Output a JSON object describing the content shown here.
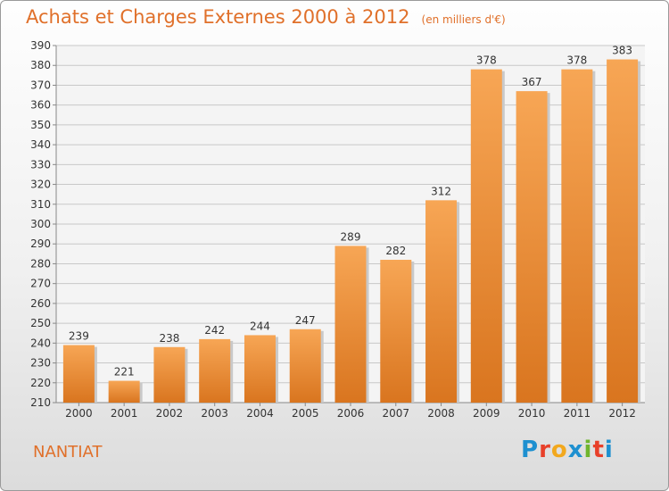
{
  "header": {
    "title": "Achats et Charges Externes 2000 à 2012",
    "subtitle": "(en milliers d'€)"
  },
  "footer": {
    "town": "NANTIAT",
    "logo_letters": [
      "P",
      "r",
      "o",
      "x",
      "i",
      "t",
      "i"
    ]
  },
  "colors": {
    "title": "#e0702a",
    "bar_top": "#f7a655",
    "bar_bottom": "#d9751f",
    "grid": "#c8c8c8",
    "logo": [
      "#1e90d0",
      "#e8402a",
      "#f2a81d",
      "#1e90d0",
      "#6fb52e",
      "#e8402a",
      "#1e90d0"
    ]
  },
  "chart_data": {
    "type": "bar",
    "categories": [
      "2000",
      "2001",
      "2002",
      "2003",
      "2004",
      "2005",
      "2006",
      "2007",
      "2008",
      "2009",
      "2010",
      "2011",
      "2012"
    ],
    "values": [
      239,
      221,
      238,
      242,
      244,
      247,
      289,
      282,
      312,
      378,
      367,
      378,
      383
    ],
    "title": "Achats et Charges Externes 2000 à 2012",
    "subtitle": "(en milliers d'€)",
    "xlabel": "",
    "ylabel": "",
    "ylim": [
      210,
      390
    ],
    "yticks": [
      210,
      220,
      230,
      240,
      250,
      260,
      270,
      280,
      290,
      300,
      310,
      320,
      330,
      340,
      350,
      360,
      370,
      380,
      390
    ],
    "grid": true,
    "legend": "none"
  }
}
